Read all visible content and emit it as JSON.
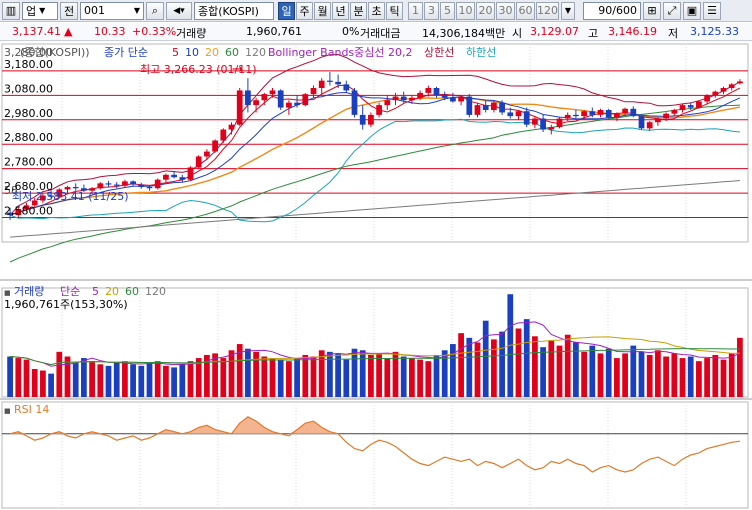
{
  "toolbar": {
    "menu_label": "업",
    "type_label": "전",
    "code_value": "001",
    "search_label": "종합(KOSPI)",
    "periods": [
      "일",
      "주",
      "월",
      "년",
      "분",
      "초",
      "틱"
    ],
    "active_period": "일",
    "intervals": [
      "1",
      "3",
      "5",
      "10",
      "20",
      "30",
      "60",
      "120"
    ],
    "count_value": "90/600"
  },
  "quote": {
    "price": "3,137.41",
    "change_arrow": "▲",
    "change": "10.33",
    "change_pct": "+0.33%",
    "volume_label": "거래량",
    "volume": "1,960,761",
    "volume_unit": "0%",
    "amount_label": "거래대금",
    "amount": "14,306,184백만",
    "open_label": "시",
    "open": "3,129.07",
    "high_label": "고",
    "high": "3,146.19",
    "low_label": "저",
    "low": "3,125.33"
  },
  "price_panel": {
    "title": "종합(KOSPI)",
    "title_value": "3,280.00",
    "ma_legend_label": "종가 단순",
    "ma_periods": [
      "5",
      "10",
      "20",
      "60",
      "120"
    ],
    "bb_label": "Bollinger Bands중심선 20,2",
    "bb_upper": "상한선",
    "bb_lower": "하한선",
    "max_annotation": "최고 3,266.23 (01/11)",
    "max_arrow": "→",
    "min_annotation": "최저 2,583.41 (11/25)",
    "y_labels": [
      "3,180.00",
      "3,080.00",
      "2,980.00",
      "2,880.00",
      "2,780.00",
      "2,680.00",
      "2,580.00"
    ],
    "left_marker": "58"
  },
  "volume_panel": {
    "label": "거래량",
    "ma_label": "단순",
    "ma_periods": [
      "5",
      "20",
      "60",
      "120"
    ],
    "value_text": "1,960,761주(153,30%)"
  },
  "rsi_panel": {
    "label": "RSI 14"
  },
  "chart_data": [
    {
      "type": "candlestick",
      "y_unit": "KOSPI index",
      "ylim": [
        2480,
        3290
      ],
      "horizontal_lines": [
        3180,
        3080,
        2980,
        2880,
        2780,
        2680,
        2580
      ],
      "ohlc": [
        [
          2600,
          2620,
          2570,
          2590
        ],
        [
          2590,
          2625,
          2580,
          2615
        ],
        [
          2615,
          2640,
          2605,
          2630
        ],
        [
          2630,
          2660,
          2620,
          2650
        ],
        [
          2650,
          2680,
          2640,
          2670
        ],
        [
          2670,
          2690,
          2655,
          2665
        ],
        [
          2665,
          2700,
          2660,
          2695
        ],
        [
          2695,
          2710,
          2680,
          2705
        ],
        [
          2705,
          2720,
          2690,
          2700
        ],
        [
          2700,
          2715,
          2685,
          2690
        ],
        [
          2690,
          2705,
          2675,
          2700
        ],
        [
          2700,
          2725,
          2695,
          2720
        ],
        [
          2720,
          2730,
          2705,
          2715
        ],
        [
          2715,
          2725,
          2700,
          2710
        ],
        [
          2710,
          2735,
          2705,
          2728
        ],
        [
          2728,
          2732,
          2710,
          2715
        ],
        [
          2715,
          2722,
          2698,
          2705
        ],
        [
          2705,
          2712,
          2690,
          2700
        ],
        [
          2700,
          2740,
          2695,
          2735
        ],
        [
          2735,
          2760,
          2725,
          2755
        ],
        [
          2755,
          2770,
          2740,
          2745
        ],
        [
          2745,
          2755,
          2725,
          2735
        ],
        [
          2735,
          2790,
          2730,
          2785
        ],
        [
          2785,
          2835,
          2780,
          2830
        ],
        [
          2830,
          2860,
          2815,
          2850
        ],
        [
          2850,
          2900,
          2845,
          2895
        ],
        [
          2895,
          2945,
          2885,
          2940
        ],
        [
          2940,
          2970,
          2920,
          2960
        ],
        [
          2960,
          3110,
          2955,
          3100
        ],
        [
          3100,
          3150,
          3010,
          3040
        ],
        [
          3040,
          3070,
          3010,
          3060
        ],
        [
          3060,
          3090,
          3040,
          3085
        ],
        [
          3085,
          3110,
          3070,
          3100
        ],
        [
          3100,
          3105,
          3020,
          3030
        ],
        [
          3030,
          3060,
          3000,
          3050
        ],
        [
          3050,
          3080,
          3030,
          3040
        ],
        [
          3040,
          3090,
          3035,
          3085
        ],
        [
          3085,
          3120,
          3070,
          3110
        ],
        [
          3110,
          3150,
          3080,
          3140
        ],
        [
          3140,
          3175,
          3120,
          3135
        ],
        [
          3135,
          3165,
          3110,
          3125
        ],
        [
          3125,
          3140,
          3090,
          3100
        ],
        [
          3100,
          3110,
          2990,
          3000
        ],
        [
          3000,
          3040,
          2940,
          2960
        ],
        [
          2960,
          3010,
          2950,
          3000
        ],
        [
          3000,
          3050,
          2990,
          3040
        ],
        [
          3040,
          3080,
          3020,
          3060
        ],
        [
          3060,
          3090,
          3040,
          3075
        ],
        [
          3075,
          3095,
          3050,
          3060
        ],
        [
          3060,
          3080,
          3045,
          3070
        ],
        [
          3070,
          3100,
          3060,
          3090
        ],
        [
          3090,
          3120,
          3075,
          3110
        ],
        [
          3110,
          3115,
          3070,
          3080
        ],
        [
          3080,
          3095,
          3060,
          3070
        ],
        [
          3070,
          3090,
          3050,
          3055
        ],
        [
          3055,
          3080,
          3040,
          3075
        ],
        [
          3075,
          3085,
          2990,
          3000
        ],
        [
          3000,
          3050,
          2990,
          3040
        ],
        [
          3040,
          3060,
          3010,
          3020
        ],
        [
          3020,
          3055,
          3010,
          3050
        ],
        [
          3050,
          3060,
          3000,
          3010
        ],
        [
          3010,
          3030,
          2985,
          2995
        ],
        [
          2995,
          3020,
          2980,
          3015
        ],
        [
          3015,
          3030,
          2950,
          2960
        ],
        [
          2960,
          2990,
          2945,
          2985
        ],
        [
          2985,
          3000,
          2930,
          2940
        ],
        [
          2940,
          2960,
          2920,
          2950
        ],
        [
          2950,
          2990,
          2945,
          2985
        ],
        [
          2985,
          3010,
          2975,
          3000
        ],
        [
          3000,
          3020,
          2985,
          2995
        ],
        [
          2995,
          3020,
          2980,
          3015
        ],
        [
          3015,
          3030,
          2990,
          3000
        ],
        [
          3000,
          3025,
          2990,
          3020
        ],
        [
          3020,
          3025,
          2985,
          2990
        ],
        [
          2990,
          3010,
          2975,
          3005
        ],
        [
          3005,
          3030,
          2995,
          3025
        ],
        [
          3025,
          3035,
          2990,
          2995
        ],
        [
          2995,
          3000,
          2940,
          2945
        ],
        [
          2945,
          2975,
          2935,
          2970
        ],
        [
          2970,
          2990,
          2955,
          2985
        ],
        [
          2985,
          3010,
          2975,
          3005
        ],
        [
          3005,
          3025,
          2995,
          3020
        ],
        [
          3020,
          3045,
          3010,
          3040
        ],
        [
          3040,
          3050,
          3020,
          3030
        ],
        [
          3030,
          3060,
          3025,
          3055
        ],
        [
          3055,
          3085,
          3045,
          3080
        ],
        [
          3080,
          3100,
          3070,
          3095
        ],
        [
          3095,
          3115,
          3085,
          3110
        ],
        [
          3110,
          3130,
          3100,
          3125
        ],
        [
          3129,
          3146,
          3125,
          3137
        ]
      ]
    },
    {
      "type": "bar",
      "series_label": "거래량",
      "values": [
        52,
        50,
        48,
        36,
        34,
        30,
        58,
        52,
        44,
        50,
        46,
        42,
        40,
        44,
        46,
        42,
        40,
        44,
        46,
        40,
        38,
        42,
        46,
        50,
        54,
        56,
        50,
        60,
        68,
        62,
        58,
        52,
        50,
        48,
        46,
        50,
        54,
        52,
        60,
        58,
        56,
        48,
        62,
        60,
        54,
        56,
        50,
        58,
        52,
        50,
        48,
        46,
        54,
        60,
        68,
        82,
        76,
        70,
        98,
        74,
        84,
        132,
        88,
        100,
        78,
        64,
        72,
        66,
        80,
        70,
        58,
        66,
        56,
        62,
        50,
        56,
        66,
        58,
        54,
        60,
        52,
        56,
        50,
        52,
        46,
        50,
        54,
        48,
        56,
        76
      ]
    },
    {
      "type": "area",
      "series_label": "RSI 14",
      "values": [
        70,
        72,
        68,
        64,
        66,
        70,
        72,
        68,
        66,
        70,
        72,
        70,
        68,
        64,
        66,
        68,
        64,
        66,
        70,
        74,
        72,
        70,
        72,
        76,
        78,
        74,
        72,
        70,
        80,
        86,
        82,
        76,
        72,
        70,
        68,
        74,
        80,
        82,
        76,
        72,
        70,
        62,
        56,
        54,
        60,
        64,
        62,
        58,
        52,
        46,
        42,
        40,
        44,
        48,
        46,
        44,
        46,
        40,
        44,
        42,
        38,
        42,
        46,
        40,
        36,
        38,
        44,
        42,
        46,
        42,
        40,
        34,
        38,
        40,
        36,
        34,
        36,
        42,
        46,
        48,
        44,
        40,
        46,
        50,
        52,
        56,
        58,
        60,
        62,
        63
      ],
      "ylim": [
        0,
        100
      ],
      "threshold": 70
    }
  ]
}
